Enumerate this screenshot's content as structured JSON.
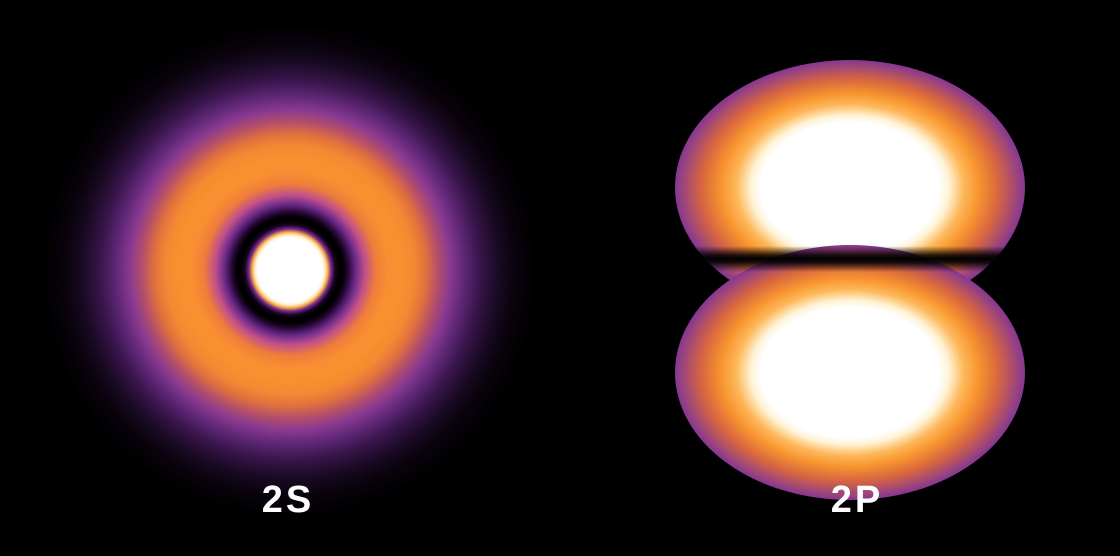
{
  "orbitals": [
    {
      "label": "2S",
      "shape": "spherical with radial node",
      "colormap": [
        "#000000",
        "#6c2a8a",
        "#f7902f",
        "#ffffff"
      ]
    },
    {
      "label": "2P",
      "shape": "two lobes with nodal plane",
      "colormap": [
        "#000000",
        "#6c2a8a",
        "#f7902f",
        "#ffffff"
      ]
    }
  ],
  "background": "#000000"
}
